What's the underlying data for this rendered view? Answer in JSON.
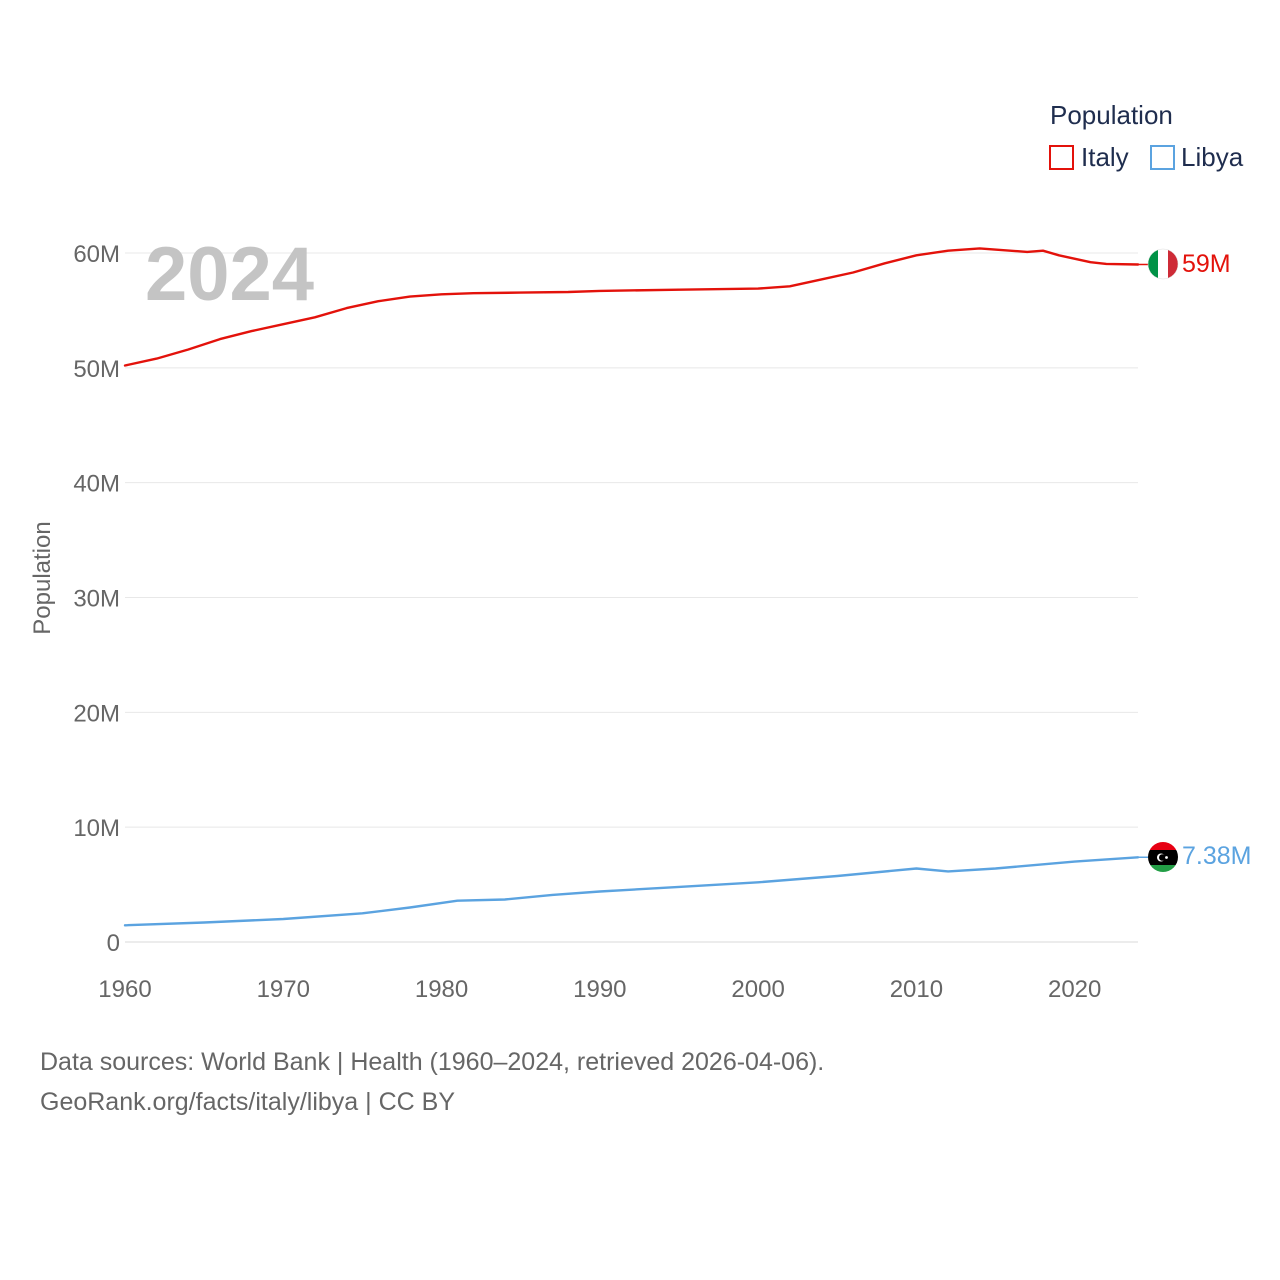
{
  "chart_data": {
    "type": "line",
    "title": "",
    "watermark_year": "2024",
    "ylabel": "Population",
    "xlabel": "",
    "xlim": [
      1960,
      2024
    ],
    "ylim": [
      0,
      60000000
    ],
    "x_ticks": [
      {
        "value": 1960,
        "label": "1960"
      },
      {
        "value": 1970,
        "label": "1970"
      },
      {
        "value": 1980,
        "label": "1980"
      },
      {
        "value": 1990,
        "label": "1990"
      },
      {
        "value": 2000,
        "label": "2000"
      },
      {
        "value": 2010,
        "label": "2010"
      },
      {
        "value": 2020,
        "label": "2020"
      }
    ],
    "y_ticks": [
      {
        "value": 0,
        "label": "0"
      },
      {
        "value": 10000000,
        "label": "10M"
      },
      {
        "value": 20000000,
        "label": "20M"
      },
      {
        "value": 30000000,
        "label": "30M"
      },
      {
        "value": 40000000,
        "label": "40M"
      },
      {
        "value": 50000000,
        "label": "50M"
      },
      {
        "value": 60000000,
        "label": "60M"
      }
    ],
    "legend": {
      "title": "Population",
      "position": "top-right"
    },
    "series": [
      {
        "name": "Italy",
        "color": "#e3120b",
        "end_label": "59M",
        "flag": "italy-flag",
        "points": [
          [
            1960,
            50200000
          ],
          [
            1962,
            50800000
          ],
          [
            1964,
            51600000
          ],
          [
            1966,
            52500000
          ],
          [
            1968,
            53200000
          ],
          [
            1970,
            53800000
          ],
          [
            1972,
            54400000
          ],
          [
            1974,
            55200000
          ],
          [
            1976,
            55800000
          ],
          [
            1978,
            56200000
          ],
          [
            1980,
            56400000
          ],
          [
            1982,
            56500000
          ],
          [
            1985,
            56550000
          ],
          [
            1988,
            56600000
          ],
          [
            1990,
            56700000
          ],
          [
            1995,
            56800000
          ],
          [
            2000,
            56900000
          ],
          [
            2002,
            57100000
          ],
          [
            2004,
            57700000
          ],
          [
            2006,
            58300000
          ],
          [
            2008,
            59100000
          ],
          [
            2010,
            59800000
          ],
          [
            2012,
            60200000
          ],
          [
            2014,
            60400000
          ],
          [
            2017,
            60100000
          ],
          [
            2018,
            60200000
          ],
          [
            2019,
            59800000
          ],
          [
            2021,
            59200000
          ],
          [
            2022,
            59050000
          ],
          [
            2024,
            59000000
          ]
        ]
      },
      {
        "name": "Libya",
        "color": "#5ba3e0",
        "end_label": "7.38M",
        "flag": "libya-flag",
        "points": [
          [
            1960,
            1450000
          ],
          [
            1965,
            1700000
          ],
          [
            1970,
            2000000
          ],
          [
            1975,
            2500000
          ],
          [
            1978,
            3000000
          ],
          [
            1981,
            3600000
          ],
          [
            1984,
            3700000
          ],
          [
            1987,
            4100000
          ],
          [
            1990,
            4400000
          ],
          [
            1995,
            4800000
          ],
          [
            2000,
            5200000
          ],
          [
            2005,
            5750000
          ],
          [
            2010,
            6400000
          ],
          [
            2012,
            6150000
          ],
          [
            2015,
            6400000
          ],
          [
            2020,
            7000000
          ],
          [
            2024,
            7380000
          ]
        ]
      }
    ]
  },
  "footer": {
    "line1": "Data sources: World Bank | Health (1960–2024, retrieved 2026-04-06).",
    "line2": "GeoRank.org/facts/italy/libya | CC BY"
  }
}
